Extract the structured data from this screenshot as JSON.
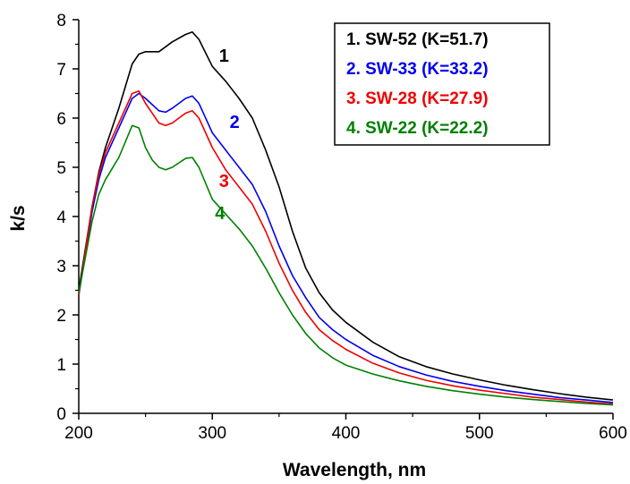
{
  "chart_data": {
    "type": "line",
    "title": "",
    "xlabel": "Wavelength, nm",
    "ylabel": "k/s",
    "xlim": [
      200,
      600
    ],
    "ylim": [
      0,
      8
    ],
    "xticks": [
      200,
      300,
      400,
      500,
      600
    ],
    "yticks": [
      0,
      1,
      2,
      3,
      4,
      5,
      6,
      7,
      8
    ],
    "grid": false,
    "legend_position": "top-right",
    "series": [
      {
        "name": "SW-52 (K=51.7)",
        "legend_label": "1.  SW-52 (K=51.7)",
        "curve_label": "1",
        "color": "#000000",
        "x": [
          200,
          210,
          215,
          220,
          230,
          240,
          245,
          250,
          260,
          270,
          280,
          285,
          290,
          300,
          310,
          320,
          330,
          340,
          350,
          360,
          370,
          380,
          390,
          400,
          420,
          440,
          460,
          480,
          500,
          520,
          540,
          560,
          580,
          600
        ],
        "y": [
          2.5,
          4.2,
          4.9,
          5.4,
          6.2,
          7.1,
          7.3,
          7.35,
          7.35,
          7.55,
          7.7,
          7.75,
          7.6,
          7.05,
          6.75,
          6.4,
          6.0,
          5.35,
          4.6,
          3.7,
          2.95,
          2.45,
          2.1,
          1.85,
          1.45,
          1.15,
          0.95,
          0.8,
          0.68,
          0.57,
          0.48,
          0.4,
          0.33,
          0.27
        ],
        "label_at": [
          305,
          7.15
        ]
      },
      {
        "name": "SW-33 (K=33.2)",
        "legend_label": "2.  SW-33 (K=33.2)",
        "curve_label": "2",
        "color": "#0000ee",
        "x": [
          200,
          210,
          215,
          220,
          230,
          240,
          245,
          250,
          260,
          265,
          270,
          280,
          285,
          290,
          300,
          310,
          320,
          330,
          340,
          350,
          360,
          370,
          380,
          390,
          400,
          420,
          440,
          460,
          480,
          500,
          520,
          540,
          560,
          580,
          600
        ],
        "y": [
          2.4,
          4.1,
          4.75,
          5.2,
          5.8,
          6.4,
          6.5,
          6.4,
          6.15,
          6.12,
          6.2,
          6.4,
          6.45,
          6.3,
          5.7,
          5.35,
          5.0,
          4.65,
          4.1,
          3.4,
          2.8,
          2.35,
          1.95,
          1.7,
          1.5,
          1.18,
          0.95,
          0.78,
          0.65,
          0.55,
          0.46,
          0.39,
          0.32,
          0.27,
          0.22
        ],
        "label_at": [
          313,
          5.8
        ]
      },
      {
        "name": "SW-28 (K=27.9)",
        "legend_label": "3.  SW-28 (K=27.9)",
        "curve_label": "3",
        "color": "#ee0000",
        "x": [
          200,
          210,
          215,
          220,
          230,
          240,
          245,
          250,
          260,
          265,
          270,
          280,
          285,
          290,
          300,
          310,
          320,
          330,
          340,
          350,
          360,
          370,
          380,
          390,
          400,
          420,
          440,
          460,
          480,
          500,
          520,
          540,
          560,
          580,
          600
        ],
        "y": [
          2.4,
          4.2,
          4.85,
          5.3,
          5.9,
          6.5,
          6.55,
          6.3,
          5.9,
          5.85,
          5.9,
          6.1,
          6.15,
          6.0,
          5.4,
          4.95,
          4.6,
          4.25,
          3.7,
          3.05,
          2.5,
          2.05,
          1.7,
          1.48,
          1.3,
          1.02,
          0.82,
          0.67,
          0.56,
          0.47,
          0.4,
          0.33,
          0.28,
          0.23,
          0.19
        ],
        "label_at": [
          305,
          4.6
        ]
      },
      {
        "name": "SW-22 (K=22.2)",
        "legend_label": "4.  SW-22 (K=22.2)",
        "curve_label": "4",
        "color": "#008000",
        "x": [
          200,
          210,
          215,
          220,
          230,
          240,
          245,
          250,
          255,
          260,
          265,
          270,
          280,
          285,
          290,
          300,
          310,
          320,
          330,
          340,
          350,
          360,
          370,
          380,
          390,
          400,
          420,
          440,
          460,
          480,
          500,
          520,
          540,
          560,
          580,
          600
        ],
        "y": [
          2.45,
          3.9,
          4.45,
          4.75,
          5.2,
          5.85,
          5.8,
          5.4,
          5.15,
          5.0,
          4.95,
          5.0,
          5.18,
          5.2,
          5.0,
          4.35,
          4.05,
          3.75,
          3.4,
          2.95,
          2.45,
          2.0,
          1.62,
          1.33,
          1.13,
          0.98,
          0.8,
          0.66,
          0.55,
          0.46,
          0.39,
          0.33,
          0.28,
          0.24,
          0.2,
          0.17
        ],
        "label_at": [
          302,
          3.95
        ]
      }
    ]
  }
}
